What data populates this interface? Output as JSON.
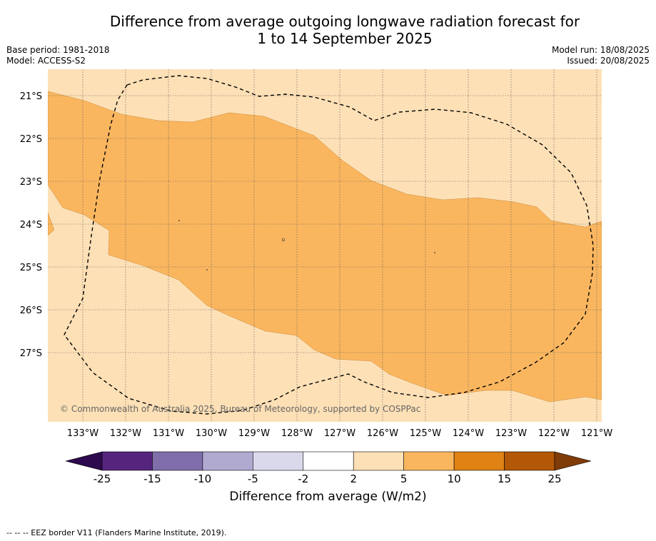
{
  "title_line1": "Difference from average outgoing longwave radiation forecast for",
  "title_line2": "1 to 14 September 2025",
  "base_period": "Base period: 1981-2018",
  "model": "Model: ACCESS-S2",
  "model_run": "Model run: 18/08/2025",
  "issued": "Issued: 20/08/2025",
  "copyright": "© Commonwealth of Australia 2025, Bureau of Meteorology, supported by COSPPac",
  "map": {
    "lon_range": [
      -133.85,
      -120.9
    ],
    "lat_range": [
      -28.6,
      -20.6
    ],
    "lon_ticks": [
      "133°W",
      "132°W",
      "131°W",
      "130°W",
      "129°W",
      "128°W",
      "127°W",
      "126°W",
      "125°W",
      "124°W",
      "123°W",
      "122°W",
      "121°W"
    ],
    "lat_ticks": [
      "21°S",
      "22°S",
      "23°S",
      "24°S",
      "25°S",
      "26°S",
      "27°S"
    ],
    "background_category": "2 to 5",
    "anomaly_region_category": "5 to 10",
    "eez_border_style": "dashed"
  },
  "colorbar": {
    "label": "Difference from average (W/m2)",
    "ticks": [
      "-25",
      "-15",
      "-10",
      "-5",
      "-2",
      "2",
      "5",
      "10",
      "15",
      "25"
    ],
    "colors": [
      "#2d0a4d",
      "#55257e",
      "#7f6eaa",
      "#b0a9d0",
      "#dad9ec",
      "#ffffff",
      "#fde0b6",
      "#fab65f",
      "#e08214",
      "#b35806",
      "#7f3b08"
    ]
  },
  "footnote": "--  --  -- EEZ border V11 (Flanders Marine Institute, 2019)."
}
